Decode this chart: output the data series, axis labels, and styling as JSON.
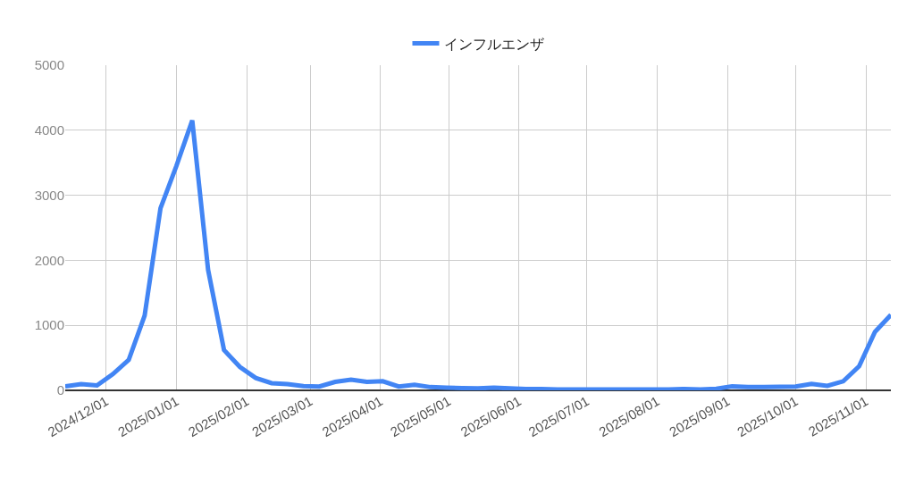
{
  "chart_data": {
    "type": "line",
    "legend": "top",
    "grid": true,
    "marker": "none",
    "line_style": "solid",
    "x": [
      "2024-11-13",
      "2024-11-20",
      "2024-11-27",
      "2024-12-04",
      "2024-12-11",
      "2024-12-18",
      "2024-12-25",
      "2025-01-01",
      "2025-01-08",
      "2025-01-15",
      "2025-01-22",
      "2025-01-29",
      "2025-02-05",
      "2025-02-12",
      "2025-02-19",
      "2025-02-26",
      "2025-03-05",
      "2025-03-12",
      "2025-03-19",
      "2025-03-26",
      "2025-04-02",
      "2025-04-09",
      "2025-04-16",
      "2025-04-23",
      "2025-04-30",
      "2025-05-07",
      "2025-05-14",
      "2025-05-21",
      "2025-05-28",
      "2025-06-04",
      "2025-06-11",
      "2025-06-18",
      "2025-06-25",
      "2025-07-02",
      "2025-07-09",
      "2025-07-16",
      "2025-07-23",
      "2025-07-30",
      "2025-08-06",
      "2025-08-13",
      "2025-08-20",
      "2025-08-27",
      "2025-09-03",
      "2025-09-10",
      "2025-09-17",
      "2025-09-24",
      "2025-10-01",
      "2025-10-08",
      "2025-10-15",
      "2025-10-22",
      "2025-10-29",
      "2025-11-05",
      "2025-11-12"
    ],
    "series": [
      {
        "name": "インフルエンザ",
        "color": "#4285f4",
        "values": [
          60,
          95,
          75,
          250,
          470,
          1150,
          2800,
          3450,
          4150,
          1850,
          620,
          360,
          190,
          110,
          95,
          65,
          60,
          130,
          165,
          130,
          140,
          60,
          85,
          50,
          40,
          35,
          30,
          40,
          30,
          20,
          20,
          15,
          15,
          15,
          15,
          15,
          15,
          15,
          15,
          20,
          15,
          25,
          60,
          50,
          50,
          55,
          60,
          100,
          70,
          140,
          370,
          900,
          1160
        ]
      }
    ],
    "xlim": [
      "2024-11-13",
      "2025-11-12"
    ],
    "xticks": [
      {
        "value": "2024-12-01",
        "label": "2024/12/01"
      },
      {
        "value": "2025-01-01",
        "label": "2025/01/01"
      },
      {
        "value": "2025-02-01",
        "label": "2025/02/01"
      },
      {
        "value": "2025-03-01",
        "label": "2025/03/01"
      },
      {
        "value": "2025-04-01",
        "label": "2025/04/01"
      },
      {
        "value": "2025-05-01",
        "label": "2025/05/01"
      },
      {
        "value": "2025-06-01",
        "label": "2025/06/01"
      },
      {
        "value": "2025-07-01",
        "label": "2025/07/01"
      },
      {
        "value": "2025-08-01",
        "label": "2025/08/01"
      },
      {
        "value": "2025-09-01",
        "label": "2025/09/01"
      },
      {
        "value": "2025-10-01",
        "label": "2025/10/01"
      },
      {
        "value": "2025-11-01",
        "label": "2025/11/01"
      }
    ],
    "ylim": [
      0,
      5000
    ],
    "yticks": [
      0,
      1000,
      2000,
      3000,
      4000,
      5000
    ]
  }
}
